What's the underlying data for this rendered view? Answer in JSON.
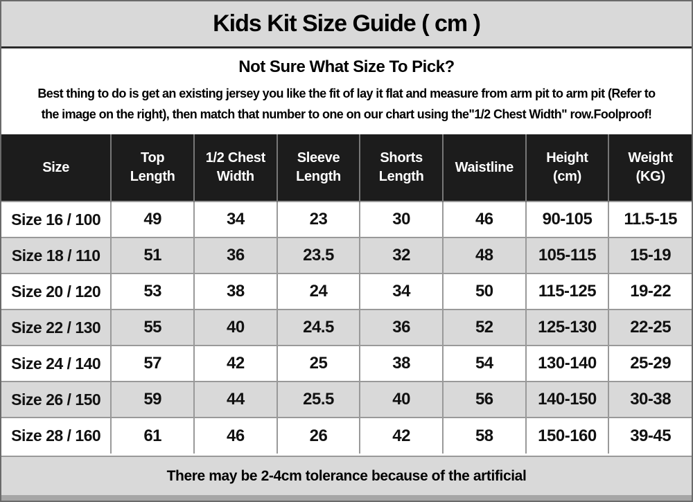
{
  "title": "Kids Kit Size Guide ( cm )",
  "intro": {
    "heading": "Not Sure What Size To Pick?",
    "line1": "Best thing to do is get an existing jersey you like the fit of lay it flat and measure from arm pit to arm pit (Refer to",
    "line2": "the image on the right), then match that number to one on our chart using the\"1/2 Chest Width\" row.Foolproof!"
  },
  "table": {
    "columns": [
      "Size",
      "Top Length",
      "1/2 Chest Width",
      "Sleeve Length",
      "Shorts Length",
      "Waistline",
      "Height (cm)",
      "Weight (KG)"
    ],
    "rows": [
      [
        "Size 16 / 100",
        "49",
        "34",
        "23",
        "30",
        "46",
        "90-105",
        "11.5-15"
      ],
      [
        "Size 18 / 110",
        "51",
        "36",
        "23.5",
        "32",
        "48",
        "105-115",
        "15-19"
      ],
      [
        "Size 20 / 120",
        "53",
        "38",
        "24",
        "34",
        "50",
        "115-125",
        "19-22"
      ],
      [
        "Size 22 / 130",
        "55",
        "40",
        "24.5",
        "36",
        "52",
        "125-130",
        "22-25"
      ],
      [
        "Size 24 / 140",
        "57",
        "42",
        "25",
        "38",
        "54",
        "130-140",
        "25-29"
      ],
      [
        "Size 26 / 150",
        "59",
        "44",
        "25.5",
        "40",
        "56",
        "140-150",
        "30-38"
      ],
      [
        "Size 28 / 160",
        "61",
        "46",
        "26",
        "42",
        "58",
        "150-160",
        "39-45"
      ]
    ]
  },
  "footer": {
    "note": "There may be 2-4cm tolerance because of the artificial"
  },
  "colors": {
    "title_bg": "#d9d9d9",
    "header_bg": "#1c1c1c",
    "header_text": "#ffffff",
    "stripe_bg": "#d9d9d9",
    "grid_line": "#999999",
    "page_border": "#6a6a6a",
    "strip_bg": "#a6a6a6"
  }
}
